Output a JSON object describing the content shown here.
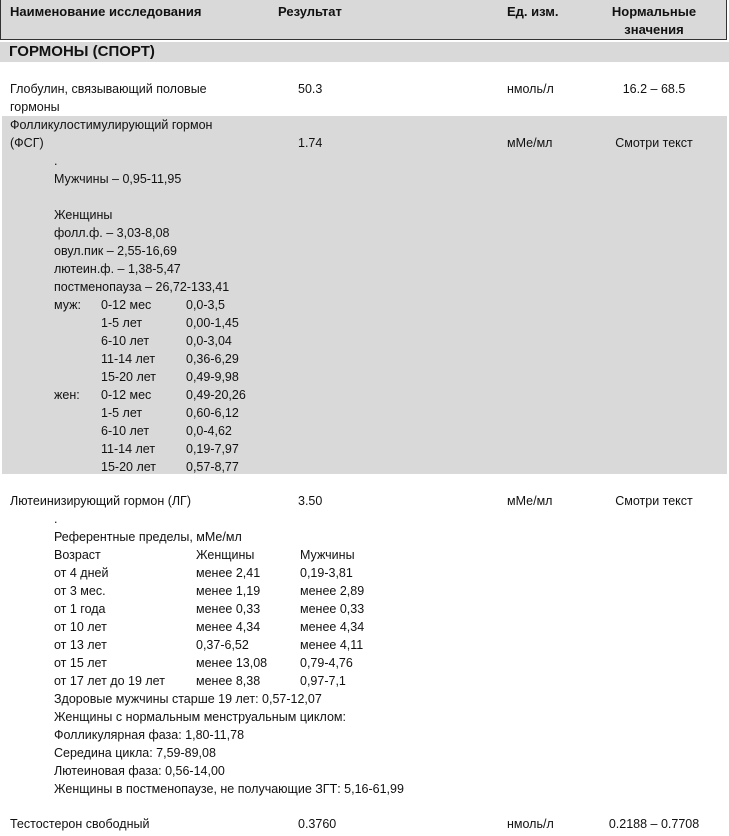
{
  "header": {
    "name": "Наименование исследования",
    "result": "Результат",
    "units": "Ед. изм.",
    "normal_line1": "Нормальные",
    "normal_line2": "значения"
  },
  "section_title": "ГОРМОНЫ (СПОРТ)",
  "rows": [
    {
      "name_line1": "Глобулин, связывающий половые",
      "name_line2": "гормоны",
      "result": "50.3",
      "units": "нмоль/л",
      "normal": "16.2 – 68.5"
    },
    {
      "name_line1": "Фолликулостимулирующий гормон",
      "name_line2": "(ФСГ)",
      "result": "1.74",
      "units": "мМе/мл",
      "normal": "Смотри текст",
      "notes": [
        ".",
        "Мужчины – 0,95-11,95",
        "",
        "Женщины",
        "фолл.ф. – 3,03-8,08",
        "овул.пик – 2,55-16,69",
        "лютеин.ф. – 1,38-5,47",
        "постменопауза – 26,72-133,41"
      ],
      "age_table": [
        [
          "муж:",
          "0-12 мес",
          "0,0-3,5"
        ],
        [
          "",
          "1-5 лет",
          "0,00-1,45"
        ],
        [
          "",
          "6-10 лет",
          "0,0-3,04"
        ],
        [
          "",
          "11-14 лет",
          "0,36-6,29"
        ],
        [
          "",
          "15-20 лет",
          "0,49-9,98"
        ],
        [
          "жен:",
          "0-12 мес",
          "0,49-20,26"
        ],
        [
          "",
          "1-5 лет",
          "0,60-6,12"
        ],
        [
          "",
          "6-10 лет",
          "0,0-4,62"
        ],
        [
          "",
          "11-14 лет",
          "0,19-7,97"
        ],
        [
          "",
          "15-20 лет",
          "0,57-8,77"
        ]
      ]
    },
    {
      "name_line1": "Лютеинизирующий гормон (ЛГ)",
      "result": "3.50",
      "units": "мМе/мл",
      "normal": "Смотри текст",
      "notes_top": [
        ".",
        "Референтные пределы, мМе/мл"
      ],
      "age_table": [
        [
          "Возраст",
          "Женщины",
          "Мужчины"
        ],
        [
          "от  4 дней",
          "менее 2,41",
          "0,19-3,81"
        ],
        [
          "от  3 мес.",
          "менее 1,19",
          "менее 2,89"
        ],
        [
          "от  1 года",
          "менее 0,33",
          "менее 0,33"
        ],
        [
          "от  10 лет",
          "менее 4,34",
          "менее 4,34"
        ],
        [
          "от  13 лет",
          "0,37-6,52",
          "менее 4,11"
        ],
        [
          "от  15 лет",
          "менее 13,08",
          "0,79-4,76"
        ],
        [
          "от  17 лет до 19 лет",
          "менее 8,38",
          "0,97-7,1"
        ]
      ],
      "notes_bottom": [
        "Здоровые мужчины старше 19 лет: 0,57-12,07",
        "Женщины с нормальным менструальным циклом:",
        "Фолликулярная фаза: 1,80-11,78",
        "Середина цикла: 7,59-89,08",
        "Лютеиновая фаза: 0,56-14,00",
        "Женщины в постменопаузе, не получающие ЗГТ: 5,16-61,99"
      ]
    },
    {
      "name_line1": "Тестостерон свободный",
      "result": "0.3760",
      "units": "нмоль/л",
      "normal": "0.2188 – 0.7708"
    }
  ]
}
